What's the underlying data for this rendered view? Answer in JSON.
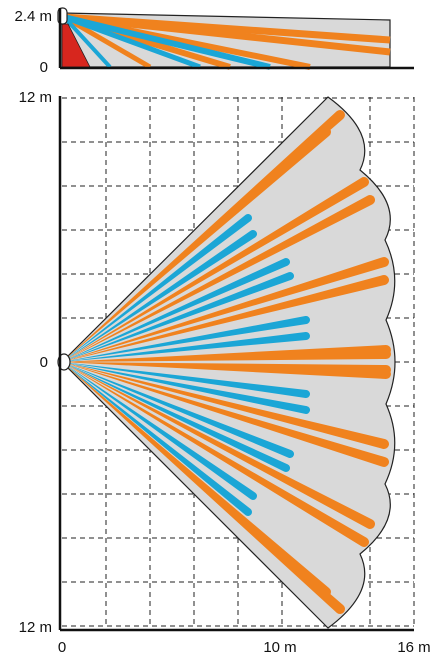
{
  "side_view": {
    "y_labels": [
      "2.4 m",
      "0"
    ]
  },
  "top_view": {
    "y_labels": [
      "12 m",
      "0",
      "12 m"
    ],
    "x_labels": [
      "0",
      "10 m",
      "16 m"
    ]
  }
}
